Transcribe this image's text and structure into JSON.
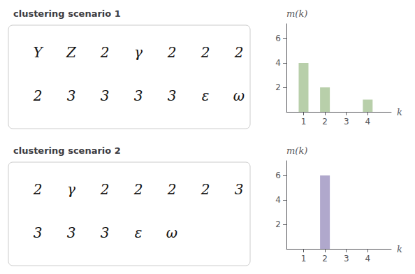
{
  "chart_data": [
    {
      "type": "bar",
      "title": "clustering scenario 1",
      "annotations": [
        "Y",
        "Z",
        "2",
        "γ",
        "2",
        "2",
        "2",
        "2",
        "3",
        "3",
        "3",
        "3",
        "ε",
        "ω"
      ],
      "x": [
        1,
        2,
        3,
        4
      ],
      "values": [
        4,
        2,
        0,
        1
      ],
      "color": "#b8cfaa",
      "xlim": [
        0.2,
        5.1
      ],
      "xticks": [
        1,
        2,
        3,
        4
      ],
      "ylim": [
        0,
        7.2
      ],
      "yticks": [
        2,
        4,
        6
      ],
      "xlabel": "k",
      "ylabel": "m(k)",
      "grid": false
    },
    {
      "type": "bar",
      "title": "clustering scenario 2",
      "annotations": [
        "2",
        "γ",
        "2",
        "2",
        "2",
        "2",
        "3",
        "3",
        "3",
        "3",
        "ε",
        "ω"
      ],
      "x": [
        1,
        2,
        3,
        4
      ],
      "values": [
        0,
        6,
        0,
        0
      ],
      "color": "#b0a8cc",
      "xlim": [
        0.2,
        5.1
      ],
      "xticks": [
        1,
        2,
        3,
        4
      ],
      "ylim": [
        0,
        7.2
      ],
      "yticks": [
        2,
        4,
        6
      ],
      "xlabel": "k",
      "ylabel": "m(k)",
      "grid": false
    }
  ]
}
